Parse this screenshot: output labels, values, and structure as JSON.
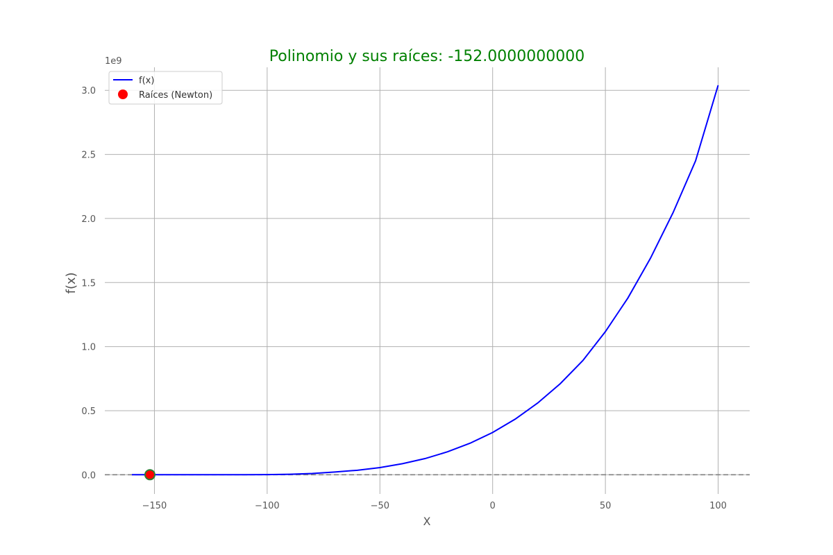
{
  "chart_data": {
    "type": "line",
    "title": "Polinomio y sus raíces: -152.0000000000",
    "title_color": "#008000",
    "xlabel": "X",
    "ylabel": "f(x)",
    "y_offset_label": "1e9",
    "xlim": [
      -172,
      114
    ],
    "ylim": [
      -0.15,
      3.18
    ],
    "x_ticks": [
      -150,
      -100,
      -50,
      0,
      50,
      100
    ],
    "x_tick_labels": [
      "−150",
      "−100",
      "−50",
      "0",
      "50",
      "100"
    ],
    "y_ticks": [
      0.0,
      0.5,
      1.0,
      1.5,
      2.0,
      2.5,
      3.0
    ],
    "y_tick_labels": [
      "0.0",
      "0.5",
      "1.0",
      "1.5",
      "2.0",
      "2.5",
      "3.0"
    ],
    "grid": true,
    "legend_position": "upper-left",
    "series": [
      {
        "name": "f(x)",
        "kind": "line",
        "color": "#0000ff",
        "x": [
          -160,
          -152,
          -140,
          -130,
          -120,
          -110,
          -100,
          -90,
          -80,
          -70,
          -60,
          -50,
          -40,
          -30,
          -20,
          -10,
          0,
          10,
          20,
          30,
          40,
          50,
          60,
          70,
          80,
          90,
          100
        ],
        "y": [
          0.0,
          0.0,
          0.0,
          0.0,
          0.0,
          0.0,
          0.001,
          0.0036,
          0.01,
          0.0215,
          0.035,
          0.056,
          0.086,
          0.126,
          0.179,
          0.246,
          0.33,
          0.434,
          0.56,
          0.711,
          0.891,
          1.117,
          1.38,
          1.69,
          2.045,
          2.45,
          3.04
        ]
      },
      {
        "name": "Raíces (Newton)",
        "kind": "scatter",
        "color": "#ff0000",
        "edge_color": "#2e7d32",
        "x": [
          -152
        ],
        "y": [
          0
        ]
      }
    ],
    "reference_line": {
      "y": 0,
      "style": "dashed",
      "color": "#808080"
    }
  }
}
